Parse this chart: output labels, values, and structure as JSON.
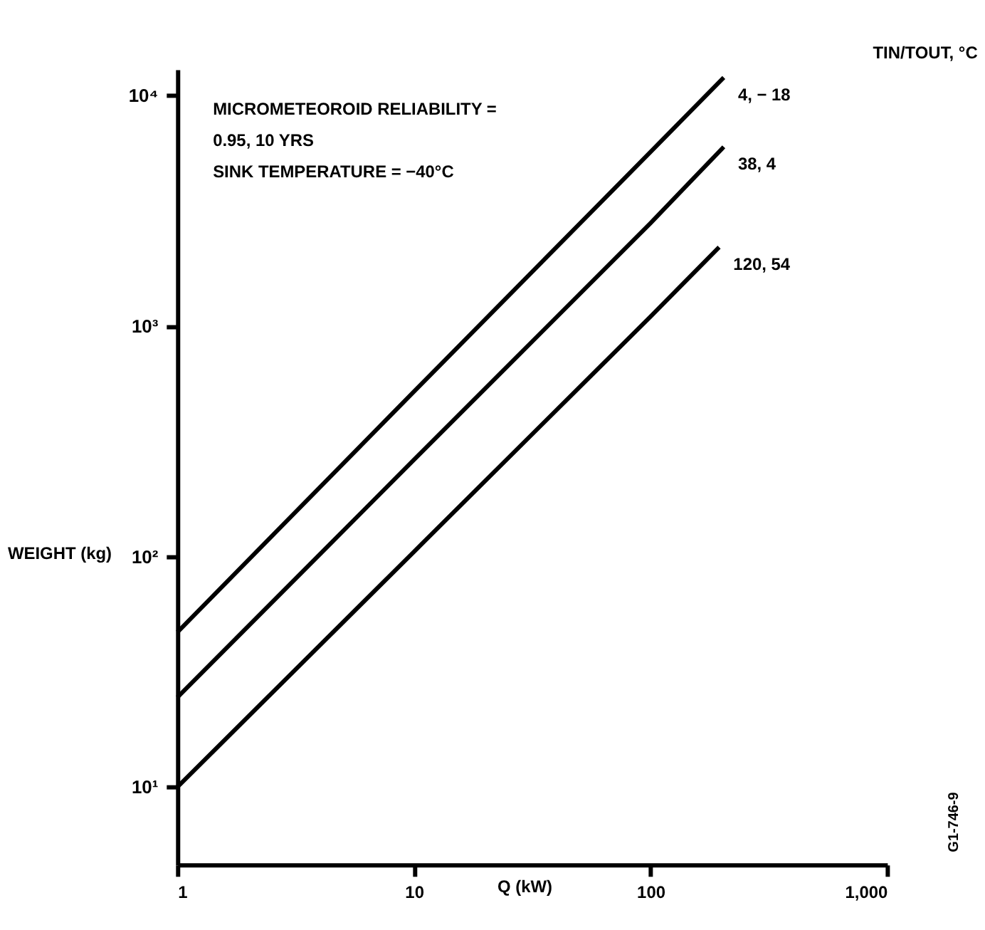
{
  "chart_data": {
    "type": "line",
    "xlabel": "Q (kW)",
    "ylabel": "WEIGHT (kg)",
    "legend_title": "TIN/TOUT, °C",
    "annotations": [
      "MICROMETEOROID RELIABILITY =",
      "0.95, 10 YRS",
      "SINK TEMPERATURE =  −40°C",
      "G1-746-9"
    ],
    "log": "xy",
    "grid": false,
    "legend": false,
    "marker": "none",
    "line_style": "solid",
    "xlim": [
      1,
      1000
    ],
    "ylim": [
      4.6,
      13000
    ],
    "xticks": [
      1,
      10,
      100,
      {
        "value": 1000,
        "label": "1,000"
      }
    ],
    "yticks": [
      {
        "value": 10,
        "label": "10¹"
      },
      {
        "value": 100,
        "label": "10²"
      },
      {
        "value": 1000,
        "label": "10³"
      },
      {
        "value": 10000,
        "label": "10⁴"
      }
    ],
    "series": [
      {
        "name": "4, − 18",
        "color": "#000000",
        "x": [
          1,
          10,
          100,
          204
        ],
        "values": [
          47,
          520,
          5700,
          12000
        ]
      },
      {
        "name": "38, 4",
        "color": "#000000",
        "x": [
          1,
          10,
          100,
          204
        ],
        "values": [
          24.5,
          263,
          2800,
          6000
        ]
      },
      {
        "name": "120, 54",
        "color": "#000000",
        "x": [
          1,
          10,
          100,
          195
        ],
        "values": [
          10,
          105,
          1100,
          2200
        ]
      }
    ]
  }
}
